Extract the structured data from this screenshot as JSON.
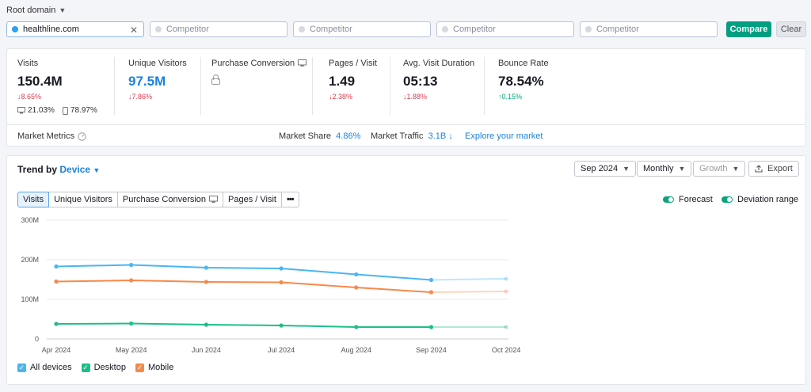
{
  "topbar": {
    "root_domain": "Root domain",
    "domain_value": "healthline.com",
    "competitor_placeholder": "Competitor",
    "compare_label": "Compare",
    "clear_label": "Clear"
  },
  "metrics": {
    "visits": {
      "label": "Visits",
      "value": "150.4M",
      "delta": "↓8.65%",
      "desktop": "21.03%",
      "mobile": "78.97%"
    },
    "unique": {
      "label": "Unique Visitors",
      "value": "97.5M",
      "delta": "↓7.86%"
    },
    "conversion": {
      "label": "Purchase Conversion"
    },
    "pages": {
      "label": "Pages / Visit",
      "value": "1.49",
      "delta": "↓2.38%"
    },
    "duration": {
      "label": "Avg. Visit Duration",
      "value": "05:13",
      "delta": "↓1.88%"
    },
    "bounce": {
      "label": "Bounce Rate",
      "value": "78.54%",
      "delta": "↑0.15%"
    }
  },
  "market": {
    "label": "Market Metrics",
    "share_label": "Market Share",
    "share_value": "4.86%",
    "traffic_label": "Market Traffic",
    "traffic_value": "3.1B ↓",
    "explore_link": "Explore your market"
  },
  "trend": {
    "title_prefix": "Trend by",
    "title_dim": "Device",
    "date_select": "Sep 2024",
    "period_select": "Monthly",
    "growth_select": "Growth",
    "export_label": "Export",
    "tabs": [
      "Visits",
      "Unique Visitors",
      "Purchase Conversion",
      "Pages / Visit",
      "•••"
    ],
    "forecast_label": "Forecast",
    "deviation_label": "Deviation range"
  },
  "colors": {
    "all_devices": "#49b6f4",
    "desktop": "#1dbf89",
    "mobile": "#f7894a",
    "accent": "#009f81"
  },
  "chart_data": {
    "type": "line",
    "x": [
      "Apr 2024",
      "May 2024",
      "Jun 2024",
      "Jul 2024",
      "Aug 2024",
      "Sep 2024",
      "Oct 2024"
    ],
    "y_ticks": [
      "0",
      "100M",
      "200M",
      "300M"
    ],
    "ylim": [
      0,
      300
    ],
    "forecast_start_index": 5,
    "series": [
      {
        "name": "All devices",
        "values": [
          183,
          187,
          180,
          178,
          163,
          149,
          152
        ]
      },
      {
        "name": "Desktop",
        "values": [
          38,
          39,
          36,
          34,
          30,
          30,
          30
        ]
      },
      {
        "name": "Mobile",
        "values": [
          145,
          148,
          144,
          143,
          130,
          118,
          120
        ]
      }
    ]
  }
}
